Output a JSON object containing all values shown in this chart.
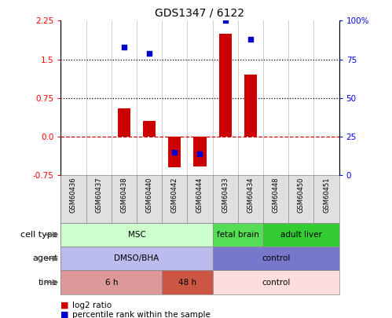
{
  "title": "GDS1347 / 6122",
  "samples": [
    "GSM60436",
    "GSM60437",
    "GSM60438",
    "GSM60440",
    "GSM60442",
    "GSM60444",
    "GSM60433",
    "GSM60434",
    "GSM60448",
    "GSM60450",
    "GSM60451"
  ],
  "log2_ratio": [
    0.0,
    0.0,
    0.55,
    0.3,
    -0.6,
    -0.58,
    2.0,
    1.2,
    0.0,
    0.0,
    0.0
  ],
  "percentile_rank": [
    null,
    null,
    83,
    79,
    15,
    14,
    100,
    88,
    null,
    null,
    null
  ],
  "ylim_left": [
    -0.75,
    2.25
  ],
  "yticks_left": [
    -0.75,
    0.0,
    0.75,
    1.5,
    2.25
  ],
  "yticks_right": [
    0,
    25,
    50,
    75,
    100
  ],
  "hline_red_dashed": 0.0,
  "hlines_dotted": [
    0.75,
    1.5
  ],
  "bar_color": "#cc0000",
  "scatter_color": "#0000cc",
  "cell_type_groups": [
    {
      "label": "MSC",
      "start": 0,
      "end": 6,
      "color": "#ccffcc",
      "edgecolor": "#888888"
    },
    {
      "label": "fetal brain",
      "start": 6,
      "end": 8,
      "color": "#55dd55",
      "edgecolor": "#888888"
    },
    {
      "label": "adult liver",
      "start": 8,
      "end": 11,
      "color": "#33cc33",
      "edgecolor": "#888888"
    }
  ],
  "agent_groups": [
    {
      "label": "DMSO/BHA",
      "start": 0,
      "end": 6,
      "color": "#bbbbee",
      "edgecolor": "#888888"
    },
    {
      "label": "control",
      "start": 6,
      "end": 11,
      "color": "#7777cc",
      "edgecolor": "#888888"
    }
  ],
  "time_groups": [
    {
      "label": "6 h",
      "start": 0,
      "end": 4,
      "color": "#dd9999",
      "edgecolor": "#888888"
    },
    {
      "label": "48 h",
      "start": 4,
      "end": 6,
      "color": "#cc5544",
      "edgecolor": "#888888"
    },
    {
      "label": "control",
      "start": 6,
      "end": 11,
      "color": "#ffdddd",
      "edgecolor": "#888888"
    }
  ],
  "row_labels": [
    "cell type",
    "agent",
    "time"
  ],
  "legend_red_label": "log2 ratio",
  "legend_blue_label": "percentile rank within the sample",
  "sample_bg": "#e0e0e0"
}
